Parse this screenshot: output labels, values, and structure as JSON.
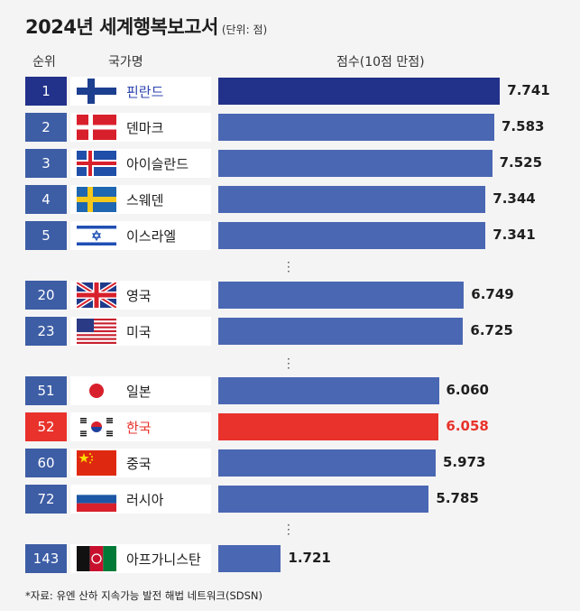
{
  "header": {
    "title": "2024년 세계행복보고서",
    "unit": "(단위: 점)",
    "col_rank": "순위",
    "col_country": "국가명",
    "col_score": "점수(10점 만점)"
  },
  "footer": "*자료: 유엔 산하 지속가능 발전 해법 네트워크(SDSN)",
  "colors": {
    "bar": "#4a67b3",
    "rank": "#3d5da5",
    "top_rank": "#22318a",
    "highlight": "#e8322b"
  },
  "chart_data": {
    "type": "bar",
    "orientation": "horizontal",
    "title": "2024년 세계행복보고서",
    "unit": "(단위: 점)",
    "xlim": [
      0,
      10
    ],
    "rows": [
      {
        "rank": "1",
        "country": "핀란드",
        "value": 7.741,
        "value_label": "7.741",
        "flag": "finland-flag",
        "style": "first"
      },
      {
        "rank": "2",
        "country": "덴마크",
        "value": 7.583,
        "value_label": "7.583",
        "flag": "denmark-flag",
        "style": "normal"
      },
      {
        "rank": "3",
        "country": "아이슬란드",
        "value": 7.525,
        "value_label": "7.525",
        "flag": "iceland-flag",
        "style": "normal"
      },
      {
        "rank": "4",
        "country": "스웨덴",
        "value": 7.344,
        "value_label": "7.344",
        "flag": "sweden-flag",
        "style": "normal"
      },
      {
        "rank": "5",
        "country": "이스라엘",
        "value": 7.341,
        "value_label": "7.341",
        "flag": "israel-flag",
        "style": "normal"
      },
      {
        "rank": "20",
        "country": "영국",
        "value": 6.749,
        "value_label": "6.749",
        "flag": "uk-flag",
        "style": "normal"
      },
      {
        "rank": "23",
        "country": "미국",
        "value": 6.725,
        "value_label": "6.725",
        "flag": "usa-flag",
        "style": "normal"
      },
      {
        "rank": "51",
        "country": "일본",
        "value": 6.06,
        "value_label": "6.060",
        "flag": "japan-flag",
        "style": "normal"
      },
      {
        "rank": "52",
        "country": "한국",
        "value": 6.058,
        "value_label": "6.058",
        "flag": "south-korea-flag",
        "style": "korea"
      },
      {
        "rank": "60",
        "country": "중국",
        "value": 5.973,
        "value_label": "5.973",
        "flag": "china-flag",
        "style": "normal"
      },
      {
        "rank": "72",
        "country": "러시아",
        "value": 5.785,
        "value_label": "5.785",
        "flag": "russia-flag",
        "style": "normal"
      },
      {
        "rank": "143",
        "country": "아프가니스탄",
        "value": 1.721,
        "value_label": "1.721",
        "flag": "afghanistan-flag",
        "style": "normal"
      }
    ]
  }
}
